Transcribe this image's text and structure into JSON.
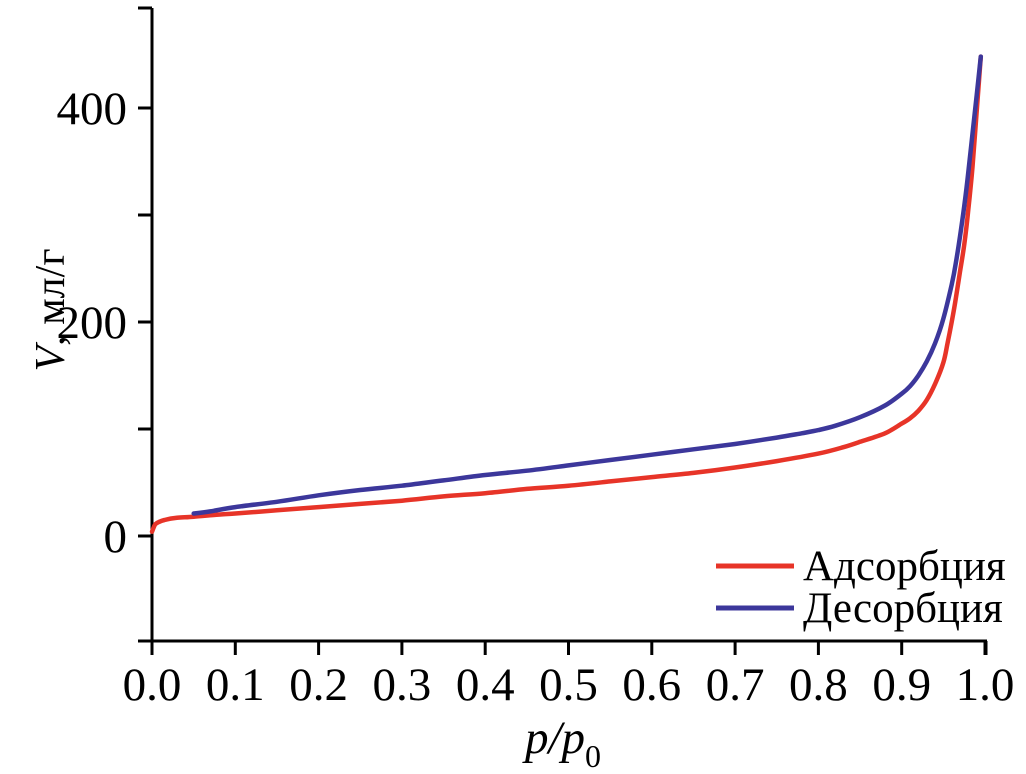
{
  "chart_data": {
    "type": "line",
    "title": "",
    "xlabel": {
      "main": "p/p",
      "sub": "0"
    },
    "ylabel": {
      "italic": "V",
      "rest": ", мл/г"
    },
    "xlim": [
      0.0,
      1.0
    ],
    "ylim": [
      0,
      500
    ],
    "grid": false,
    "legend_position": "inside-bottom-right",
    "background_color": "#ffffff",
    "axis_color": "#000000",
    "x_ticks": {
      "values": [
        0.0,
        0.1,
        0.2,
        0.3,
        0.4,
        0.5,
        0.6,
        0.7,
        0.8,
        0.9,
        1.0
      ],
      "labels": [
        "0.0",
        "0.1",
        "0.2",
        "0.3",
        "0.4",
        "0.5",
        "0.6",
        "0.7",
        "0.8",
        "0.9",
        "1.0"
      ]
    },
    "y_ticks": {
      "major_values": [
        0,
        200,
        400
      ],
      "major_labels": [
        "0",
        "200",
        "400"
      ],
      "minor_values": [
        100,
        300
      ]
    },
    "series": [
      {
        "name": "Адсорбция",
        "color": "#e73428",
        "points": [
          [
            0.0,
            4
          ],
          [
            0.002,
            8
          ],
          [
            0.004,
            11
          ],
          [
            0.008,
            13
          ],
          [
            0.015,
            15
          ],
          [
            0.03,
            17
          ],
          [
            0.05,
            18
          ],
          [
            0.08,
            20
          ],
          [
            0.1,
            21
          ],
          [
            0.15,
            24
          ],
          [
            0.2,
            27
          ],
          [
            0.25,
            30
          ],
          [
            0.3,
            33
          ],
          [
            0.35,
            37
          ],
          [
            0.4,
            40
          ],
          [
            0.45,
            44
          ],
          [
            0.5,
            47
          ],
          [
            0.55,
            51
          ],
          [
            0.6,
            55
          ],
          [
            0.65,
            59
          ],
          [
            0.7,
            64
          ],
          [
            0.75,
            70
          ],
          [
            0.8,
            77
          ],
          [
            0.83,
            83
          ],
          [
            0.85,
            88
          ],
          [
            0.88,
            96
          ],
          [
            0.9,
            105
          ],
          [
            0.91,
            110
          ],
          [
            0.92,
            117
          ],
          [
            0.93,
            127
          ],
          [
            0.94,
            142
          ],
          [
            0.95,
            162
          ],
          [
            0.955,
            180
          ],
          [
            0.96,
            200
          ],
          [
            0.965,
            222
          ],
          [
            0.97,
            247
          ],
          [
            0.975,
            272
          ],
          [
            0.98,
            305
          ],
          [
            0.985,
            345
          ],
          [
            0.99,
            397
          ],
          [
            0.995,
            448
          ]
        ]
      },
      {
        "name": "Десорбция",
        "color": "#3c379b",
        "points": [
          [
            0.05,
            21
          ],
          [
            0.07,
            23
          ],
          [
            0.1,
            27
          ],
          [
            0.15,
            32
          ],
          [
            0.2,
            38
          ],
          [
            0.25,
            43
          ],
          [
            0.3,
            47
          ],
          [
            0.35,
            52
          ],
          [
            0.4,
            57
          ],
          [
            0.45,
            61
          ],
          [
            0.5,
            66
          ],
          [
            0.55,
            71
          ],
          [
            0.6,
            76
          ],
          [
            0.65,
            81
          ],
          [
            0.7,
            86
          ],
          [
            0.75,
            92
          ],
          [
            0.78,
            96
          ],
          [
            0.8,
            99
          ],
          [
            0.82,
            103
          ],
          [
            0.85,
            111
          ],
          [
            0.88,
            122
          ],
          [
            0.9,
            133
          ],
          [
            0.91,
            140
          ],
          [
            0.92,
            150
          ],
          [
            0.93,
            163
          ],
          [
            0.94,
            180
          ],
          [
            0.95,
            203
          ],
          [
            0.96,
            235
          ],
          [
            0.965,
            255
          ],
          [
            0.97,
            280
          ],
          [
            0.975,
            308
          ],
          [
            0.98,
            340
          ],
          [
            0.985,
            376
          ],
          [
            0.99,
            412
          ],
          [
            0.995,
            448
          ]
        ]
      }
    ]
  }
}
